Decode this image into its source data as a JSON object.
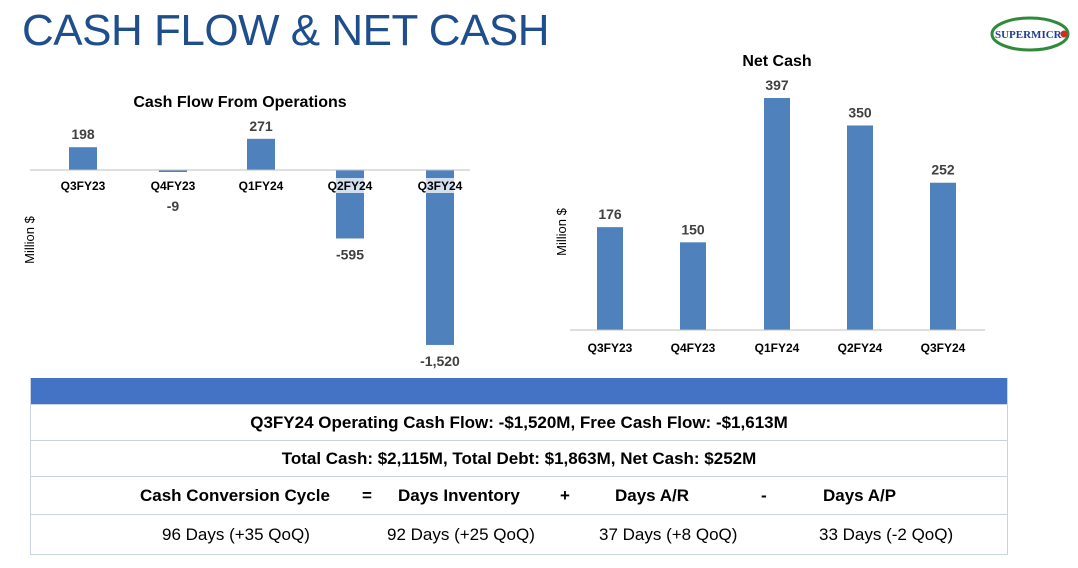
{
  "header": {
    "title": "CASH FLOW & NET CASH",
    "logo_text": "SUPERMICR"
  },
  "colors": {
    "bar": "#4f81bd",
    "title": "#1f4e8c",
    "table_header": "#4472c4",
    "logo_green": "#2e8b3a",
    "logo_blue": "#1f3f8f",
    "logo_red": "#d52b1e"
  },
  "chart_data": [
    {
      "type": "bar",
      "title": "Cash Flow From Operations",
      "ylabel": "Million $",
      "categories": [
        "Q3FY23",
        "Q4FY23",
        "Q1FY24",
        "Q2FY24",
        "Q3FY24"
      ],
      "values": [
        198,
        -9,
        271,
        -595,
        -1520
      ],
      "value_labels": [
        "198",
        "-9",
        "271",
        "-595",
        "-1,520"
      ],
      "ylim": [
        -1520,
        271
      ],
      "grid": false,
      "legend": "none"
    },
    {
      "type": "bar",
      "title": "Net Cash",
      "ylabel": "Million $",
      "categories": [
        "Q3FY23",
        "Q4FY23",
        "Q1FY24",
        "Q2FY24",
        "Q3FY24"
      ],
      "values": [
        176,
        150,
        397,
        350,
        252
      ],
      "value_labels": [
        "176",
        "150",
        "397",
        "350",
        "252"
      ],
      "ylim": [
        0,
        397
      ],
      "grid": false,
      "legend": "none"
    }
  ],
  "summary": {
    "line1": "Q3FY24 Operating Cash Flow: -$1,520M, Free Cash Flow: -$1,613M",
    "line2": "Total Cash: $2,115M, Total Debt: $1,863M, Net Cash: $252M",
    "ccc_label": "Cash Conversion Cycle",
    "op_equals": "=",
    "days_inventory_label": "Days Inventory",
    "op_plus": "+",
    "days_ar_label": "Days A/R",
    "op_minus": "-",
    "days_ap_label": "Days A/P",
    "ccc_value": "96 Days (+35 QoQ)",
    "days_inventory_value": "92 Days (+25 QoQ)",
    "days_ar_value": "37 Days (+8 QoQ)",
    "days_ap_value": "33 Days (-2 QoQ)"
  }
}
